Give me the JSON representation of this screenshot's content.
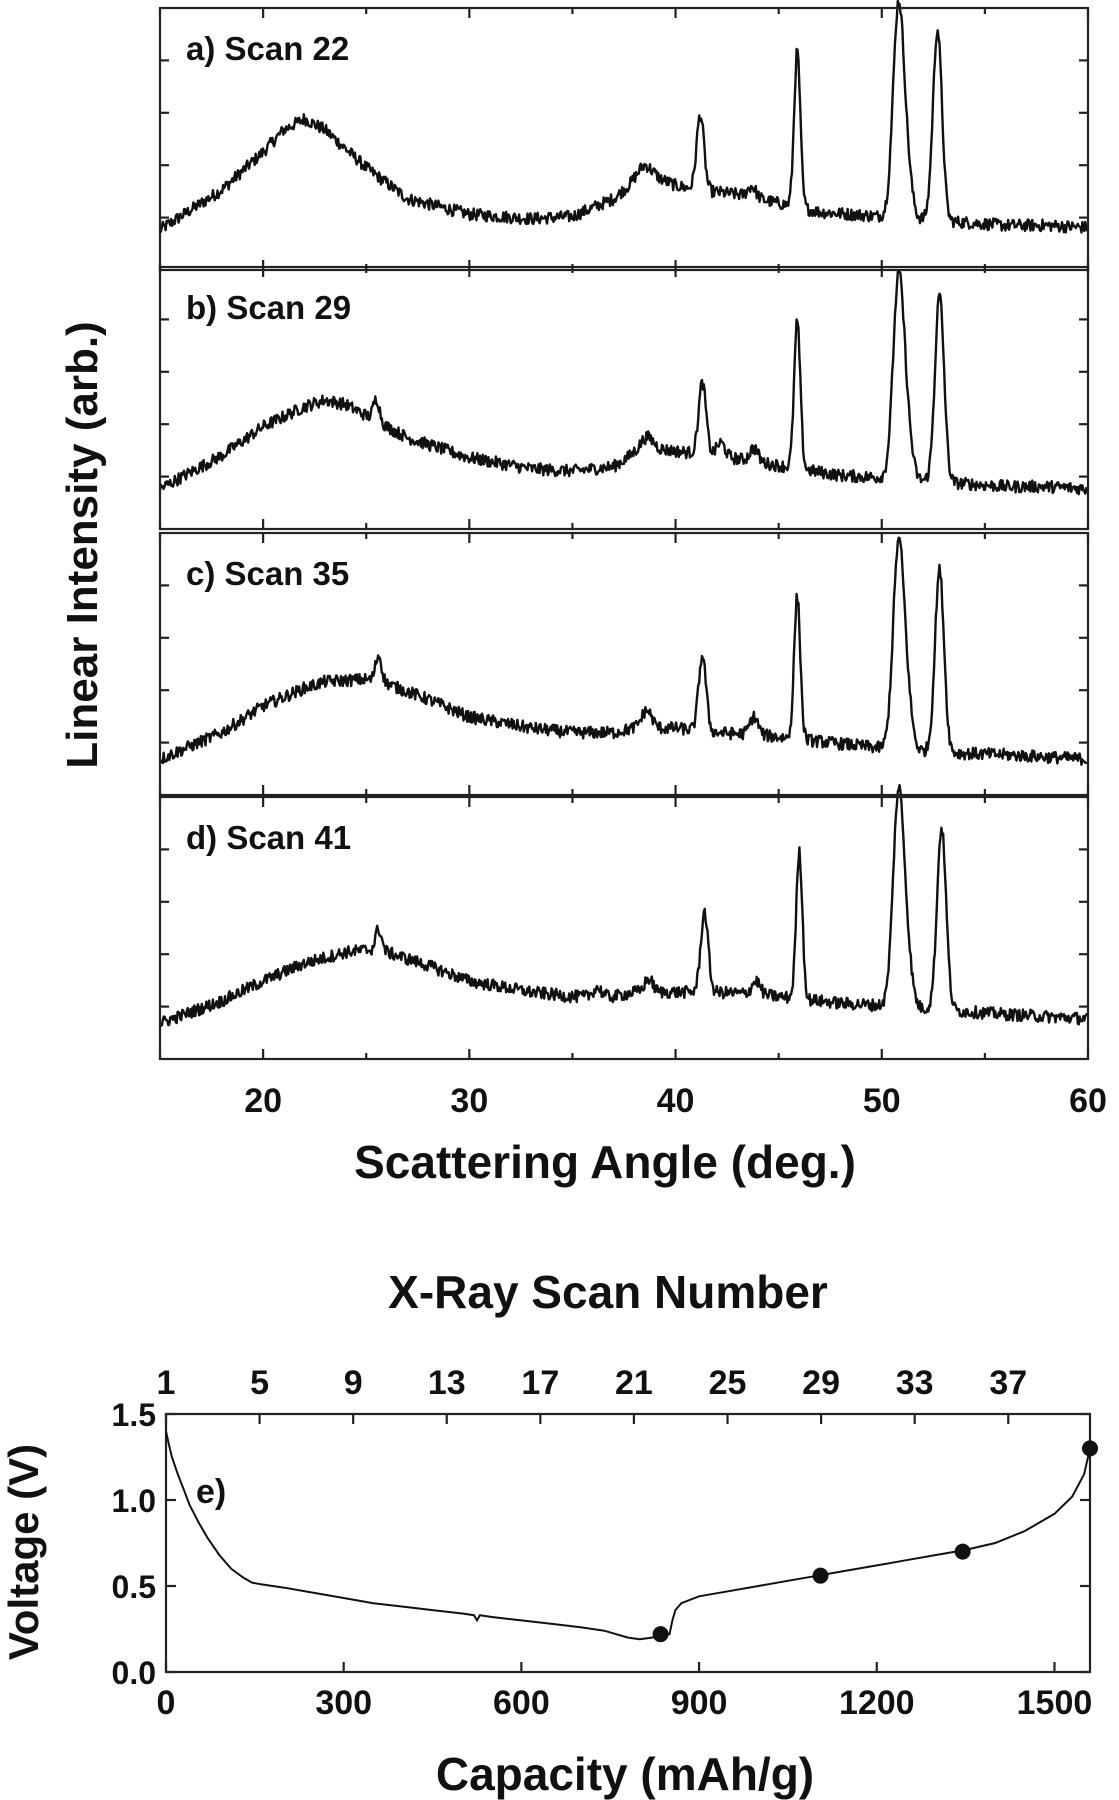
{
  "chart_data": [
    {
      "type": "line",
      "ylabel": "Linear Intensity (arb.)",
      "xlabel": "Scattering Angle (deg.)",
      "xlim": [
        15,
        60
      ],
      "xticks": [
        20,
        30,
        40,
        50,
        60
      ],
      "y_tick_labels": "none",
      "grid": false,
      "panels": [
        {
          "label": "a) Scan 22",
          "background": [
            [
              15,
              0.1
            ],
            [
              18,
              0.28
            ],
            [
              20,
              0.45
            ],
            [
              21,
              0.55
            ],
            [
              22,
              0.6
            ],
            [
              23,
              0.55
            ],
            [
              25,
              0.38
            ],
            [
              27,
              0.24
            ],
            [
              30,
              0.17
            ],
            [
              33,
              0.15
            ],
            [
              35,
              0.16
            ],
            [
              37,
              0.24
            ],
            [
              38,
              0.32
            ],
            [
              39,
              0.34
            ],
            [
              40,
              0.3
            ],
            [
              41,
              0.28
            ],
            [
              43,
              0.26
            ],
            [
              45,
              0.22
            ],
            [
              47,
              0.18
            ],
            [
              50,
              0.16
            ],
            [
              53,
              0.14
            ],
            [
              56,
              0.12
            ],
            [
              58,
              0.12
            ],
            [
              60,
              0.11
            ]
          ],
          "peaks": [
            [
              38.5,
              0.06,
              0.3
            ],
            [
              41.2,
              0.34,
              0.18
            ],
            [
              43.7,
              0.05,
              0.2
            ],
            [
              45.9,
              0.7,
              0.15
            ],
            [
              50.8,
              0.92,
              0.26
            ],
            [
              51.2,
              0.2,
              0.25
            ],
            [
              52.7,
              0.86,
              0.22
            ]
          ]
        },
        {
          "label": "b) Scan 29",
          "background": [
            [
              15,
              0.1
            ],
            [
              18,
              0.25
            ],
            [
              20,
              0.38
            ],
            [
              22,
              0.47
            ],
            [
              23,
              0.5
            ],
            [
              24,
              0.48
            ],
            [
              25,
              0.43
            ],
            [
              27,
              0.33
            ],
            [
              30,
              0.24
            ],
            [
              33,
              0.19
            ],
            [
              35,
              0.18
            ],
            [
              37,
              0.2
            ],
            [
              38,
              0.26
            ],
            [
              39,
              0.28
            ],
            [
              40,
              0.27
            ],
            [
              42,
              0.25
            ],
            [
              44,
              0.22
            ],
            [
              46,
              0.19
            ],
            [
              48,
              0.16
            ],
            [
              50,
              0.15
            ],
            [
              53,
              0.13
            ],
            [
              56,
              0.11
            ],
            [
              58,
              0.11
            ],
            [
              60,
              0.1
            ]
          ],
          "peaks": [
            [
              25.5,
              0.1,
              0.15
            ],
            [
              38.6,
              0.06,
              0.3
            ],
            [
              41.3,
              0.32,
              0.18
            ],
            [
              42.2,
              0.06,
              0.2
            ],
            [
              43.8,
              0.06,
              0.2
            ],
            [
              45.9,
              0.66,
              0.15
            ],
            [
              50.8,
              0.86,
              0.26
            ],
            [
              51.2,
              0.22,
              0.25
            ],
            [
              52.8,
              0.84,
              0.22
            ]
          ]
        },
        {
          "label": "c) Scan 35",
          "background": [
            [
              15,
              0.08
            ],
            [
              18,
              0.2
            ],
            [
              20,
              0.32
            ],
            [
              22,
              0.4
            ],
            [
              23,
              0.43
            ],
            [
              25,
              0.44
            ],
            [
              26,
              0.42
            ],
            [
              28,
              0.35
            ],
            [
              30,
              0.27
            ],
            [
              33,
              0.22
            ],
            [
              35,
              0.2
            ],
            [
              37,
              0.2
            ],
            [
              38,
              0.22
            ],
            [
              40,
              0.22
            ],
            [
              42,
              0.2
            ],
            [
              44,
              0.19
            ],
            [
              46,
              0.17
            ],
            [
              48,
              0.15
            ],
            [
              50,
              0.13
            ],
            [
              53,
              0.11
            ],
            [
              56,
              0.1
            ],
            [
              58,
              0.09
            ],
            [
              60,
              0.08
            ]
          ],
          "peaks": [
            [
              25.6,
              0.12,
              0.15
            ],
            [
              38.6,
              0.08,
              0.25
            ],
            [
              41.3,
              0.34,
              0.18
            ],
            [
              43.8,
              0.08,
              0.2
            ],
            [
              45.9,
              0.64,
              0.15
            ],
            [
              50.8,
              0.88,
              0.26
            ],
            [
              51.2,
              0.22,
              0.25
            ],
            [
              52.8,
              0.82,
              0.22
            ]
          ]
        },
        {
          "label": "d) Scan 41",
          "background": [
            [
              15,
              0.08
            ],
            [
              18,
              0.18
            ],
            [
              20,
              0.27
            ],
            [
              22,
              0.35
            ],
            [
              24,
              0.4
            ],
            [
              25,
              0.41
            ],
            [
              26,
              0.4
            ],
            [
              28,
              0.34
            ],
            [
              30,
              0.27
            ],
            [
              33,
              0.22
            ],
            [
              35,
              0.2
            ],
            [
              37,
              0.2
            ],
            [
              38,
              0.22
            ],
            [
              40,
              0.22
            ],
            [
              42,
              0.22
            ],
            [
              44,
              0.21
            ],
            [
              46,
              0.19
            ],
            [
              48,
              0.17
            ],
            [
              50,
              0.16
            ],
            [
              53,
              0.14
            ],
            [
              56,
              0.12
            ],
            [
              58,
              0.11
            ],
            [
              60,
              0.1
            ]
          ],
          "peaks": [
            [
              25.6,
              0.1,
              0.15
            ],
            [
              36.2,
              0.04,
              0.2
            ],
            [
              38.7,
              0.06,
              0.2
            ],
            [
              41.4,
              0.36,
              0.18
            ],
            [
              43.9,
              0.06,
              0.2
            ],
            [
              46.0,
              0.66,
              0.15
            ],
            [
              50.8,
              0.92,
              0.26
            ],
            [
              51.2,
              0.22,
              0.25
            ],
            [
              52.9,
              0.82,
              0.22
            ]
          ]
        }
      ]
    },
    {
      "type": "line",
      "label": "e)",
      "xlabel": "Capacity (mAh/g)",
      "ylabel": "Voltage (V)",
      "top_axis_label": "X-Ray Scan Number",
      "xlim": [
        0,
        1560
      ],
      "ylim": [
        0,
        1.5
      ],
      "xticks": [
        0,
        300,
        600,
        900,
        1200,
        1500
      ],
      "yticks": [
        0.0,
        0.5,
        1.0,
        1.5
      ],
      "ytick_labels": [
        "0.0",
        "0.5",
        "1.0",
        "1.5"
      ],
      "top_ticks": [
        "1",
        "5",
        "9",
        "13",
        "17",
        "21",
        "25",
        "29",
        "33",
        "37"
      ],
      "top_tick_capacity": [
        0,
        158,
        316,
        474,
        632,
        790,
        948,
        1106,
        1264,
        1422
      ],
      "grid": false,
      "curve": [
        [
          0,
          1.4
        ],
        [
          5,
          1.32
        ],
        [
          10,
          1.25
        ],
        [
          20,
          1.15
        ],
        [
          30,
          1.06
        ],
        [
          40,
          0.97
        ],
        [
          55,
          0.87
        ],
        [
          70,
          0.78
        ],
        [
          90,
          0.68
        ],
        [
          110,
          0.6
        ],
        [
          130,
          0.55
        ],
        [
          145,
          0.52
        ],
        [
          160,
          0.51
        ],
        [
          180,
          0.5
        ],
        [
          200,
          0.49
        ],
        [
          250,
          0.46
        ],
        [
          300,
          0.43
        ],
        [
          350,
          0.4
        ],
        [
          400,
          0.38
        ],
        [
          450,
          0.36
        ],
        [
          500,
          0.34
        ],
        [
          520,
          0.33
        ],
        [
          525,
          0.3
        ],
        [
          530,
          0.33
        ],
        [
          550,
          0.32
        ],
        [
          600,
          0.3
        ],
        [
          650,
          0.28
        ],
        [
          700,
          0.26
        ],
        [
          740,
          0.24
        ],
        [
          760,
          0.22
        ],
        [
          780,
          0.2
        ],
        [
          800,
          0.19
        ],
        [
          820,
          0.2
        ],
        [
          840,
          0.21
        ],
        [
          850,
          0.22
        ],
        [
          855,
          0.3
        ],
        [
          860,
          0.36
        ],
        [
          870,
          0.4
        ],
        [
          900,
          0.44
        ],
        [
          950,
          0.47
        ],
        [
          1000,
          0.5
        ],
        [
          1050,
          0.53
        ],
        [
          1100,
          0.56
        ],
        [
          1150,
          0.59
        ],
        [
          1200,
          0.62
        ],
        [
          1250,
          0.65
        ],
        [
          1300,
          0.68
        ],
        [
          1350,
          0.71
        ],
        [
          1400,
          0.75
        ],
        [
          1450,
          0.82
        ],
        [
          1500,
          0.92
        ],
        [
          1530,
          1.02
        ],
        [
          1550,
          1.15
        ],
        [
          1560,
          1.3
        ]
      ],
      "points": [
        [
          835,
          0.22
        ],
        [
          1105,
          0.56
        ],
        [
          1345,
          0.7
        ],
        [
          1560,
          1.3
        ]
      ]
    }
  ]
}
